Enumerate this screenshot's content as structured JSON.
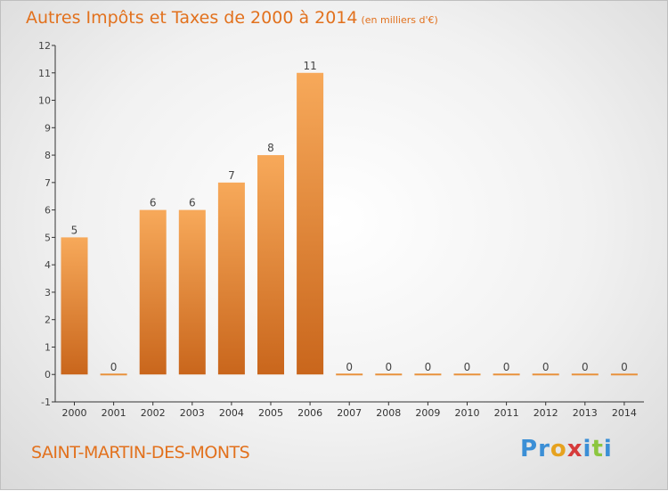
{
  "header": {
    "title": "Autres Impôts et Taxes de 2000 à 2014",
    "unit": "(en milliers d'€)"
  },
  "commune": "SAINT-MARTIN-DES-MONTS",
  "logo": {
    "letters": [
      {
        "ch": "P",
        "color": "#3b8fd6"
      },
      {
        "ch": "r",
        "color": "#3b8fd6"
      },
      {
        "ch": "o",
        "color": "#e6a21f"
      },
      {
        "ch": "x",
        "color": "#d63b3b"
      },
      {
        "ch": "i",
        "color": "#3b8fd6"
      },
      {
        "ch": "t",
        "color": "#8cc63f"
      },
      {
        "ch": "i",
        "color": "#3b8fd6"
      }
    ]
  },
  "colors": {
    "accent": "#e2711d",
    "bar_light": "#f7a95a",
    "bar_dark": "#c9661c",
    "axis": "#333333"
  },
  "chart_data": {
    "type": "bar",
    "title": "Autres Impôts et Taxes de 2000 à 2014",
    "xlabel": "",
    "ylabel": "",
    "categories": [
      "2000",
      "2001",
      "2002",
      "2003",
      "2004",
      "2005",
      "2006",
      "2007",
      "2008",
      "2009",
      "2010",
      "2011",
      "2012",
      "2013",
      "2014"
    ],
    "values": [
      5,
      0,
      6,
      6,
      7,
      8,
      11,
      0,
      0,
      0,
      0,
      0,
      0,
      0,
      0
    ],
    "y_ticks": [
      "-1",
      "0",
      "1",
      "2",
      "3",
      "4",
      "5",
      "6",
      "7",
      "8",
      "9",
      "10",
      "11",
      "12"
    ],
    "ylim": [
      -1,
      12
    ],
    "grid": false,
    "legend": "none"
  }
}
